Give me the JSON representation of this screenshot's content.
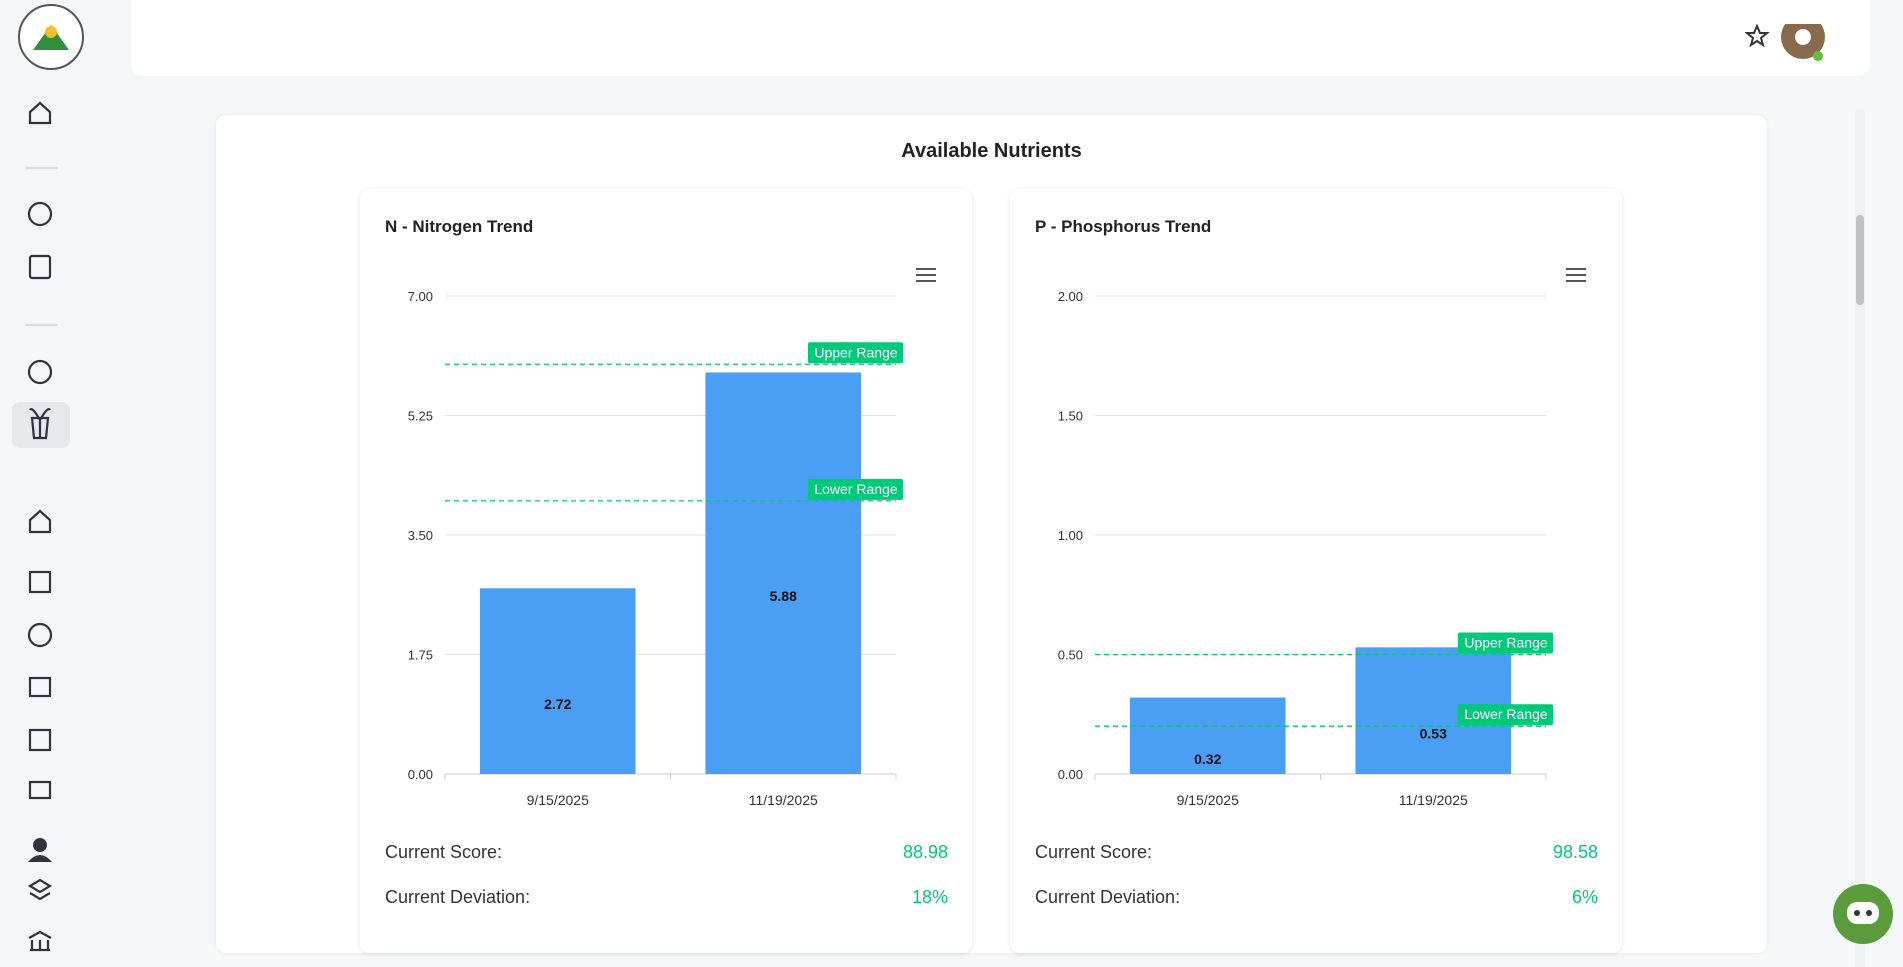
{
  "section_title": "Available Nutrients",
  "chart_data": [
    {
      "type": "bar",
      "title": "N - Nitrogen Trend",
      "categories": [
        "9/15/2025",
        "11/19/2025"
      ],
      "values": [
        2.72,
        5.88
      ],
      "color": "#4a9ff5",
      "ylim": [
        0,
        7
      ],
      "yticks": [
        {
          "value": 0,
          "label": "0.00"
        },
        {
          "value": 1.75,
          "label": "1.75"
        },
        {
          "value": 3.5,
          "label": "3.50"
        },
        {
          "value": 5.25,
          "label": "5.25"
        },
        {
          "value": 7,
          "label": "7.00"
        }
      ],
      "grid": true,
      "annotations": [
        {
          "label": "Upper Range",
          "value": 6
        },
        {
          "label": "Lower Range",
          "value": 4
        }
      ],
      "stats": [
        {
          "label": "Current Score:",
          "value": "88.98"
        },
        {
          "label": "Current Deviation:",
          "value": "18%"
        }
      ]
    },
    {
      "type": "bar",
      "title": "P - Phosphorus Trend",
      "categories": [
        "9/15/2025",
        "11/19/2025"
      ],
      "values": [
        0.32,
        0.53
      ],
      "color": "#4a9ff5",
      "ylim": [
        0,
        2
      ],
      "yticks": [
        {
          "value": 0,
          "label": "0.00"
        },
        {
          "value": 0.5,
          "label": "0.50"
        },
        {
          "value": 1,
          "label": "1.00"
        },
        {
          "value": 1.5,
          "label": "1.50"
        },
        {
          "value": 2,
          "label": "2.00"
        }
      ],
      "grid": true,
      "annotations": [
        {
          "label": "Upper Range",
          "value": 0.5
        },
        {
          "label": "Lower Range",
          "value": 0.2
        }
      ],
      "stats": [
        {
          "label": "Current Score:",
          "value": "98.58"
        },
        {
          "label": "Current Deviation:",
          "value": "6%"
        }
      ]
    }
  ]
}
